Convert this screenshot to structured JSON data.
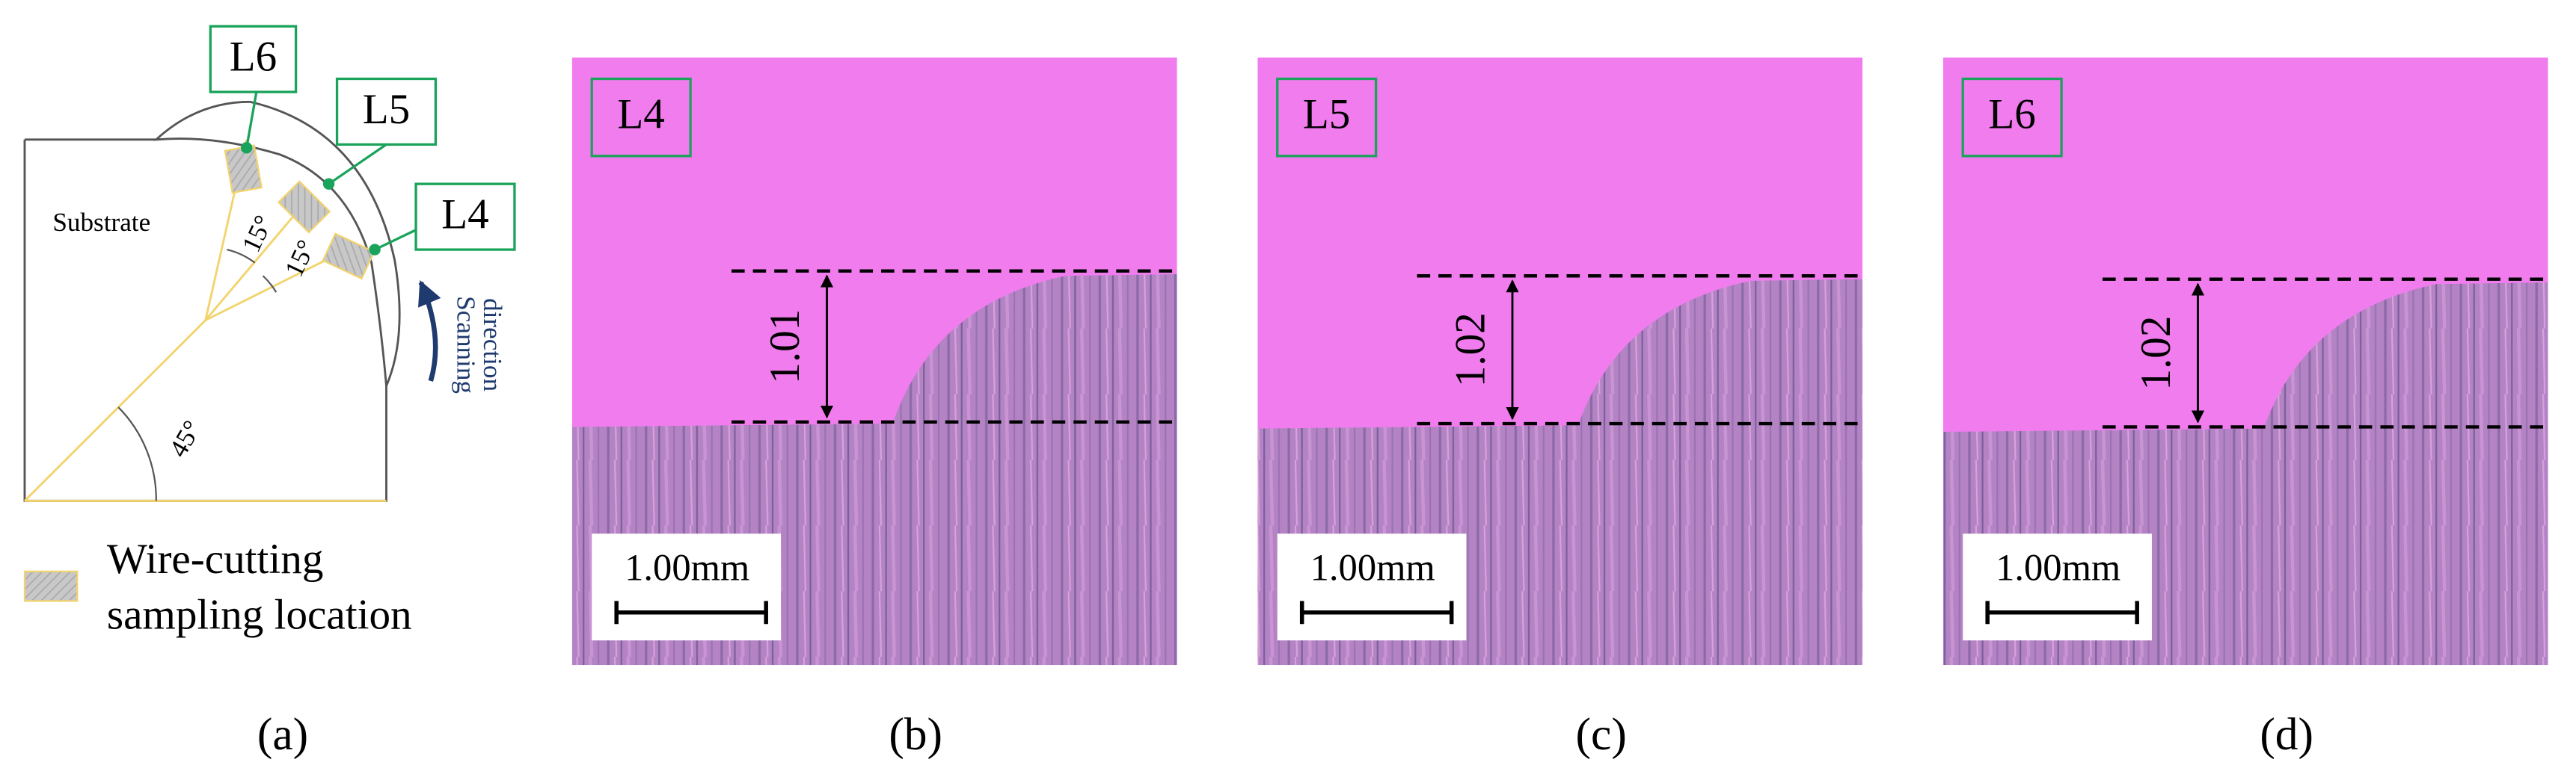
{
  "panel_a": {
    "label": "(a)",
    "substrate": "Substrate",
    "locations": [
      "L6",
      "L5",
      "L4"
    ],
    "angles": [
      "15°",
      "15°",
      "45°"
    ],
    "scan_direction": [
      "Scanning",
      "direction"
    ],
    "legend": [
      "Wire-cutting",
      "sampling location"
    ]
  },
  "micrographs": [
    {
      "location": "L4",
      "thickness": "1.01",
      "scale_bar": "1.00mm",
      "label": "(b)"
    },
    {
      "location": "L5",
      "thickness": "1.02",
      "scale_bar": "1.00mm",
      "label": "(c)"
    },
    {
      "location": "L6",
      "thickness": "1.02",
      "scale_bar": "1.00mm",
      "label": "(d)"
    }
  ]
}
